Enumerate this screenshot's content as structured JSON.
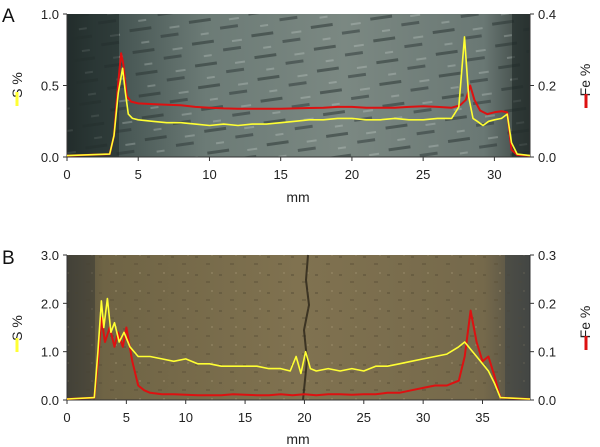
{
  "chart_data": [
    {
      "type": "line",
      "panel_label": "A",
      "xlabel": "mm",
      "ylabel_left": "S %",
      "ylabel_right": "Fe %",
      "xlim": [
        0,
        32.5
      ],
      "ylim_left": [
        0,
        1.0
      ],
      "ylim_right": [
        0,
        0.4
      ],
      "xticks": [
        "0",
        "5",
        "10",
        "15",
        "20",
        "25",
        "30"
      ],
      "yticks_left": [
        "0.0",
        "0.5",
        "1.0"
      ],
      "yticks_right": [
        "0.0",
        "0.2",
        "0.4"
      ],
      "background": "sample-photo-grey-striated",
      "series": [
        {
          "axis": "left",
          "color": "#ffff33",
          "x": [
            0,
            3.0,
            3.3,
            3.6,
            3.9,
            4.1,
            4.3,
            4.6,
            5,
            6,
            7,
            8,
            9,
            10,
            11,
            12,
            13,
            14,
            15,
            16,
            17,
            18,
            19,
            20,
            21,
            22,
            23,
            24,
            25,
            26,
            27,
            27.5,
            27.9,
            28.2,
            28.5,
            28.8,
            29.2,
            29.6,
            30,
            30.5,
            30.9,
            31.2,
            31.6,
            32.5
          ],
          "values": [
            0.01,
            0.02,
            0.15,
            0.45,
            0.62,
            0.45,
            0.3,
            0.27,
            0.26,
            0.25,
            0.24,
            0.24,
            0.23,
            0.22,
            0.23,
            0.22,
            0.23,
            0.23,
            0.24,
            0.25,
            0.26,
            0.26,
            0.27,
            0.27,
            0.26,
            0.26,
            0.27,
            0.26,
            0.26,
            0.27,
            0.27,
            0.35,
            0.84,
            0.42,
            0.27,
            0.25,
            0.22,
            0.25,
            0.26,
            0.27,
            0.3,
            0.1,
            0.02,
            0.01
          ]
        },
        {
          "axis": "right",
          "color": "#dd1111",
          "x": [
            0,
            3.0,
            3.3,
            3.6,
            3.8,
            3.95,
            4.2,
            4.5,
            5,
            6,
            7,
            8,
            9,
            10,
            11,
            12,
            13,
            14,
            15,
            16,
            17,
            18,
            19,
            20,
            21,
            22,
            23,
            24,
            25,
            26,
            27,
            27.6,
            28.0,
            28.3,
            28.6,
            29.0,
            29.5,
            30,
            30.5,
            30.9,
            31.2,
            31.6,
            32.5
          ],
          "values": [
            0.004,
            0.008,
            0.06,
            0.21,
            0.29,
            0.26,
            0.17,
            0.155,
            0.15,
            0.148,
            0.146,
            0.145,
            0.14,
            0.138,
            0.136,
            0.135,
            0.135,
            0.135,
            0.135,
            0.136,
            0.137,
            0.138,
            0.14,
            0.14,
            0.138,
            0.138,
            0.138,
            0.14,
            0.142,
            0.14,
            0.138,
            0.145,
            0.16,
            0.2,
            0.16,
            0.13,
            0.12,
            0.125,
            0.128,
            0.125,
            0.02,
            0.006,
            0.004
          ]
        }
      ]
    },
    {
      "type": "line",
      "panel_label": "B",
      "xlabel": "mm",
      "ylabel_left": "S %",
      "ylabel_right": "Fe %",
      "xlim": [
        0,
        39
      ],
      "ylim_left": [
        0,
        3.0
      ],
      "ylim_right": [
        0,
        0.3
      ],
      "xticks": [
        "0",
        "5",
        "10",
        "15",
        "20",
        "25",
        "30",
        "35"
      ],
      "yticks_left": [
        "0.0",
        "1.0",
        "2.0",
        "3.0"
      ],
      "yticks_right": [
        "0.0",
        "0.1",
        "0.2",
        "0.3"
      ],
      "background": "sample-photo-brown-with-crack",
      "series": [
        {
          "axis": "left",
          "color": "#ffff33",
          "x": [
            0,
            2.3,
            2.6,
            2.9,
            3.1,
            3.4,
            3.7,
            4.0,
            4.4,
            4.8,
            5.3,
            6,
            7,
            8,
            9,
            10,
            11,
            12,
            13,
            14,
            15,
            16,
            17,
            18,
            18.8,
            19.3,
            19.7,
            20.1,
            20.5,
            21,
            22,
            23,
            24,
            25,
            26,
            27,
            28,
            29,
            30,
            31,
            32,
            33,
            33.5,
            34,
            34.5,
            35,
            35.5,
            36,
            36.5,
            39
          ],
          "values": [
            0.02,
            0.05,
            1.0,
            2.05,
            1.5,
            2.1,
            1.4,
            1.6,
            1.2,
            1.4,
            1.1,
            0.9,
            0.9,
            0.85,
            0.8,
            0.85,
            0.75,
            0.75,
            0.7,
            0.7,
            0.7,
            0.7,
            0.65,
            0.65,
            0.6,
            0.9,
            0.55,
            1.0,
            0.65,
            0.6,
            0.65,
            0.6,
            0.65,
            0.6,
            0.7,
            0.7,
            0.75,
            0.8,
            0.85,
            0.9,
            0.95,
            1.1,
            1.2,
            1.05,
            0.9,
            0.75,
            0.6,
            0.35,
            0.05,
            0.02
          ]
        },
        {
          "axis": "right",
          "color": "#dd1111",
          "x": [
            0,
            2.3,
            2.6,
            2.9,
            3.2,
            3.6,
            4.0,
            4.3,
            4.7,
            5.0,
            5.5,
            6.0,
            6.5,
            7,
            8,
            9,
            10,
            11,
            12,
            13,
            14,
            15,
            16,
            17,
            18,
            19,
            20,
            21,
            22,
            23,
            24,
            25,
            26,
            27,
            28,
            29,
            30,
            31,
            32,
            32.5,
            33,
            33.5,
            34,
            34.5,
            35,
            35.5,
            36,
            36.5,
            39
          ],
          "values": [
            0.002,
            0.005,
            0.08,
            0.17,
            0.12,
            0.15,
            0.11,
            0.14,
            0.11,
            0.15,
            0.08,
            0.03,
            0.02,
            0.015,
            0.012,
            0.012,
            0.011,
            0.01,
            0.01,
            0.01,
            0.012,
            0.011,
            0.01,
            0.01,
            0.012,
            0.01,
            0.012,
            0.01,
            0.012,
            0.012,
            0.011,
            0.012,
            0.012,
            0.015,
            0.015,
            0.02,
            0.025,
            0.03,
            0.03,
            0.035,
            0.04,
            0.09,
            0.185,
            0.12,
            0.08,
            0.09,
            0.05,
            0.005,
            0.002
          ]
        }
      ]
    }
  ]
}
